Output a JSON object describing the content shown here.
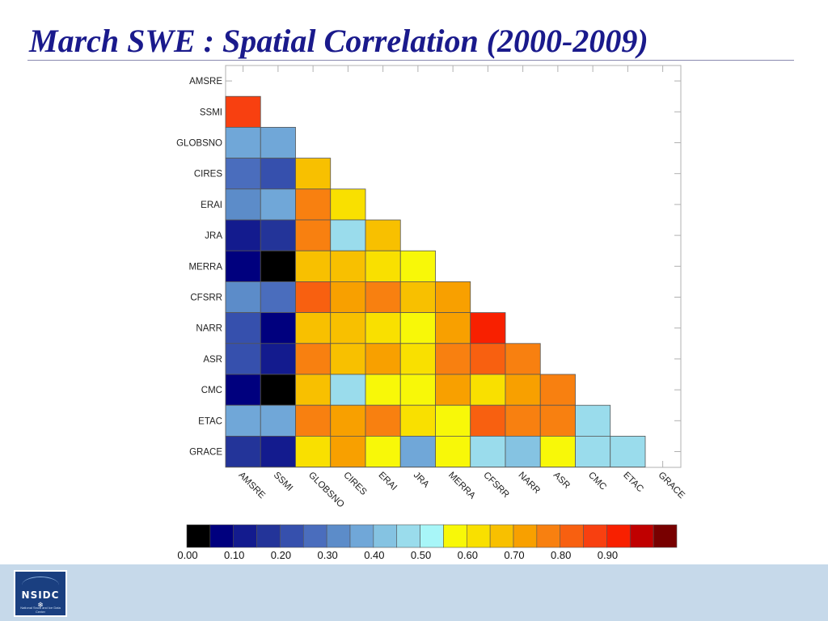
{
  "slide": {
    "title": "March SWE : Spatial Correlation (2000-2009)"
  },
  "logo": {
    "text": "NSIDC",
    "subtext": "National Snow and Ice Data Center",
    "icon": "snowflake-icon"
  },
  "chart_data": {
    "type": "heatmap",
    "title": "",
    "xlabel": "",
    "ylabel": "",
    "grid": false,
    "datasets": [
      "AMSRE",
      "SSMI",
      "GLOBSNO",
      "CIRES",
      "ERAI",
      "JRA",
      "MERRA",
      "CFSRR",
      "NARR",
      "ASR",
      "CMC",
      "ETAC",
      "GRACE"
    ],
    "matrix": [
      [],
      [
        0.87
      ],
      [
        0.37,
        0.37
      ],
      [
        0.27,
        0.23,
        0.67
      ],
      [
        0.33,
        0.37,
        0.77,
        0.62
      ],
      [
        0.13,
        0.17,
        0.77,
        0.45,
        0.67
      ],
      [
        0.07,
        0.0,
        0.67,
        0.67,
        0.62,
        0.57
      ],
      [
        0.33,
        0.27,
        0.82,
        0.72,
        0.75,
        0.67,
        0.72
      ],
      [
        0.23,
        0.07,
        0.67,
        0.67,
        0.62,
        0.57,
        0.72,
        0.92
      ],
      [
        0.23,
        0.13,
        0.75,
        0.67,
        0.72,
        0.62,
        0.75,
        0.82,
        0.77
      ],
      [
        0.07,
        0.0,
        0.67,
        0.45,
        0.57,
        0.57,
        0.72,
        0.62,
        0.72,
        0.77
      ],
      [
        0.37,
        0.37,
        0.77,
        0.72,
        0.77,
        0.62,
        0.57,
        0.82,
        0.75,
        0.75,
        0.45
      ],
      [
        0.17,
        0.13,
        0.62,
        0.72,
        0.57,
        0.37,
        0.57,
        0.45,
        0.42,
        0.57,
        0.45,
        0.45
      ]
    ],
    "colorbar": {
      "min": 0.0,
      "max": 1.0,
      "step": 0.05,
      "tick_labels": [
        "0.00",
        "0.10",
        "0.20",
        "0.30",
        "0.40",
        "0.50",
        "0.60",
        "0.70",
        "0.80",
        "0.90"
      ],
      "colors": [
        "#000000",
        "#00007e",
        "#131b8e",
        "#233499",
        "#3650ad",
        "#4a6dbd",
        "#5c8cc9",
        "#70a7d8",
        "#85c3e2",
        "#9adcec",
        "#a8f6f8",
        "#f8f808",
        "#f9e000",
        "#f8c000",
        "#f8a000",
        "#f88010",
        "#f86010",
        "#f84010",
        "#f82000",
        "#c00000",
        "#780000"
      ]
    }
  }
}
